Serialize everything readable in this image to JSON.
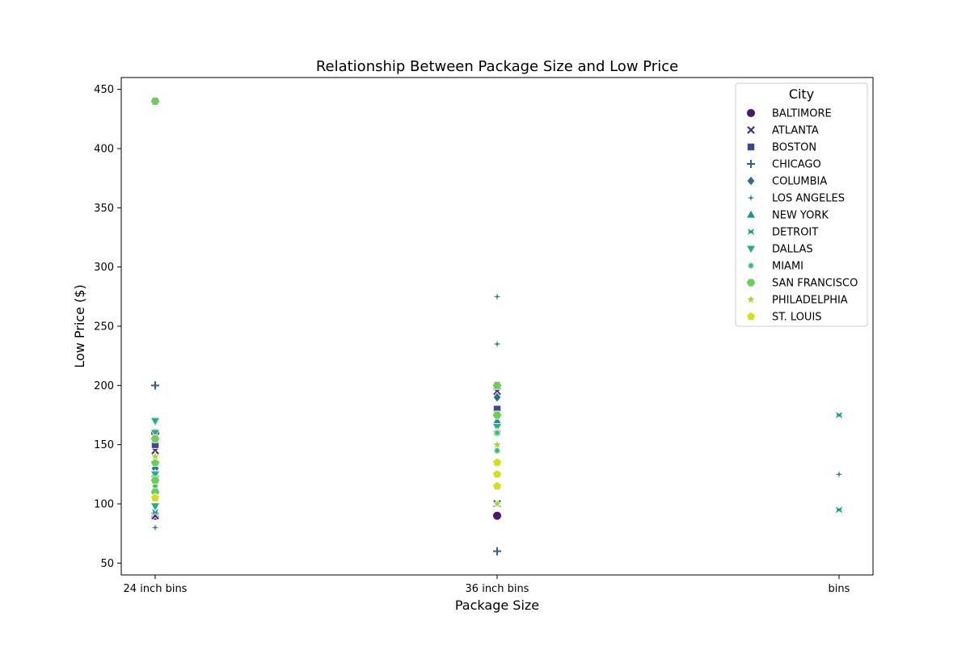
{
  "chart_data": {
    "type": "scatter",
    "title": "Relationship Between Package Size and Low Price",
    "xlabel": "Package Size",
    "ylabel": "Low Price ($)",
    "categories": [
      "24 inch bins",
      "36 inch bins",
      "bins"
    ],
    "yticks": [
      50,
      100,
      150,
      200,
      250,
      300,
      350,
      400,
      450
    ],
    "ylim": [
      40,
      460
    ],
    "grid": false,
    "legend": {
      "title": "City",
      "position": "top-right"
    },
    "series": [
      {
        "name": "BALTIMORE",
        "marker": "circle",
        "color": "#481a6c",
        "points": [
          {
            "x": "24 inch bins",
            "y": 160
          },
          {
            "x": "24 inch bins",
            "y": 90
          },
          {
            "x": "36 inch bins",
            "y": 90
          }
        ]
      },
      {
        "name": "ATLANTA",
        "marker": "x",
        "color": "#472f7d",
        "points": [
          {
            "x": "24 inch bins",
            "y": 145
          },
          {
            "x": "24 inch bins",
            "y": 90
          },
          {
            "x": "36 inch bins",
            "y": 195
          },
          {
            "x": "36 inch bins",
            "y": 100
          }
        ]
      },
      {
        "name": "BOSTON",
        "marker": "square",
        "color": "#3f4788",
        "points": [
          {
            "x": "24 inch bins",
            "y": 150
          },
          {
            "x": "36 inch bins",
            "y": 180
          },
          {
            "x": "36 inch bins",
            "y": 160
          }
        ]
      },
      {
        "name": "CHICAGO",
        "marker": "plus",
        "color": "#355e8d",
        "points": [
          {
            "x": "24 inch bins",
            "y": 200
          },
          {
            "x": "36 inch bins",
            "y": 60
          }
        ]
      },
      {
        "name": "COLUMBIA",
        "marker": "diamond",
        "color": "#2e6f8e",
        "points": [
          {
            "x": "24 inch bins",
            "y": 130
          },
          {
            "x": "36 inch bins",
            "y": 190
          }
        ]
      },
      {
        "name": "LOS ANGELES",
        "marker": "star4",
        "color": "#277f8e",
        "points": [
          {
            "x": "24 inch bins",
            "y": 80
          },
          {
            "x": "36 inch bins",
            "y": 275
          },
          {
            "x": "36 inch bins",
            "y": 235
          },
          {
            "x": "bins",
            "y": 125
          }
        ]
      },
      {
        "name": "NEW YORK",
        "marker": "triangle-up",
        "color": "#21918c",
        "points": [
          {
            "x": "24 inch bins",
            "y": 125
          },
          {
            "x": "36 inch bins",
            "y": 170
          }
        ]
      },
      {
        "name": "DETROIT",
        "marker": "bowtie",
        "color": "#1fa088",
        "points": [
          {
            "x": "24 inch bins",
            "y": 93
          },
          {
            "x": "bins",
            "y": 175
          },
          {
            "x": "bins",
            "y": 95
          }
        ]
      },
      {
        "name": "DALLAS",
        "marker": "triangle-down",
        "color": "#28ae80",
        "points": [
          {
            "x": "24 inch bins",
            "y": 170
          },
          {
            "x": "24 inch bins",
            "y": 160
          },
          {
            "x": "24 inch bins",
            "y": 125
          },
          {
            "x": "24 inch bins",
            "y": 98
          },
          {
            "x": "36 inch bins",
            "y": 165
          }
        ]
      },
      {
        "name": "MIAMI",
        "marker": "star8",
        "color": "#3fbc73",
        "points": [
          {
            "x": "24 inch bins",
            "y": 115
          },
          {
            "x": "36 inch bins",
            "y": 160
          },
          {
            "x": "36 inch bins",
            "y": 145
          }
        ]
      },
      {
        "name": "SAN FRANCISCO",
        "marker": "hexagon",
        "color": "#6ccd5a",
        "points": [
          {
            "x": "24 inch bins",
            "y": 440
          },
          {
            "x": "24 inch bins",
            "y": 155
          },
          {
            "x": "24 inch bins",
            "y": 135
          },
          {
            "x": "24 inch bins",
            "y": 120
          },
          {
            "x": "24 inch bins",
            "y": 110
          },
          {
            "x": "36 inch bins",
            "y": 200
          },
          {
            "x": "36 inch bins",
            "y": 175
          }
        ]
      },
      {
        "name": "PHILADELPHIA",
        "marker": "star5",
        "color": "#a0da39",
        "points": [
          {
            "x": "24 inch bins",
            "y": 140
          },
          {
            "x": "36 inch bins",
            "y": 150
          },
          {
            "x": "36 inch bins",
            "y": 100
          }
        ]
      },
      {
        "name": "ST. LOUIS",
        "marker": "pentagon",
        "color": "#d0e11c",
        "points": [
          {
            "x": "24 inch bins",
            "y": 105
          },
          {
            "x": "36 inch bins",
            "y": 135
          },
          {
            "x": "36 inch bins",
            "y": 125
          },
          {
            "x": "36 inch bins",
            "y": 115
          }
        ]
      }
    ]
  }
}
